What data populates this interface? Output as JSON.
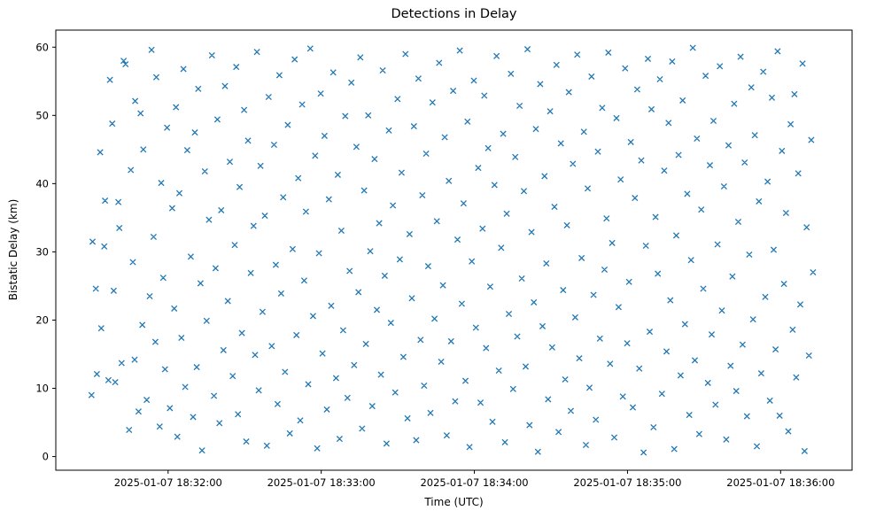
{
  "title": "Detections in Delay",
  "chart_data": {
    "type": "scatter",
    "title": "Detections in Delay",
    "xlabel": "Time (UTC)",
    "ylabel": "Bistatic Delay (km)",
    "marker": "x",
    "marker_color": "#1f77b4",
    "x_unit": "seconds after 2025-01-07 18:32:00",
    "xlim_seconds": [
      -44,
      268
    ],
    "ylim": [
      -2.0,
      62.5
    ],
    "x_tick_seconds": [
      0,
      60,
      120,
      180,
      240
    ],
    "x_tick_labels": [
      "2025-01-07 18:32:00",
      "2025-01-07 18:33:00",
      "2025-01-07 18:34:00",
      "2025-01-07 18:35:00",
      "2025-01-07 18:36:00"
    ],
    "y_ticks": [
      0,
      10,
      20,
      30,
      40,
      50,
      60
    ],
    "grid": false,
    "legend": "none",
    "points_t_y": [
      -30.0,
      9.0,
      -29.6,
      31.5,
      -28.3,
      24.6,
      -27.9,
      12.1,
      -26.6,
      44.6,
      -26.2,
      18.8,
      -25.0,
      30.8,
      -24.7,
      37.5,
      -23.4,
      11.2,
      -22.8,
      55.2,
      -21.9,
      48.8,
      -21.3,
      24.3,
      -20.7,
      10.9,
      -19.5,
      37.3,
      -19.1,
      33.5,
      -18.2,
      13.7,
      -17.4,
      58.0,
      -16.7,
      57.5,
      -15.3,
      3.9,
      -14.6,
      42.0,
      -13.8,
      28.5,
      -13.1,
      14.2,
      -12.9,
      52.1,
      -11.6,
      6.6,
      -10.8,
      50.3,
      -10.1,
      19.3,
      -9.7,
      45.0,
      -8.4,
      8.3,
      -7.2,
      23.5,
      -6.5,
      59.6,
      -5.7,
      32.2,
      -5.0,
      16.8,
      -4.6,
      55.6,
      -3.3,
      4.4,
      -2.7,
      40.1,
      -1.9,
      26.2,
      -1.2,
      12.8,
      -0.4,
      48.2,
      0.7,
      7.1,
      1.6,
      36.4,
      2.4,
      21.7,
      3.1,
      51.2,
      3.6,
      2.9,
      4.4,
      38.6,
      5.2,
      17.4,
      6.0,
      56.8,
      6.7,
      10.2,
      7.5,
      44.9,
      8.9,
      29.3,
      9.8,
      5.8,
      10.5,
      47.5,
      11.2,
      13.1,
      11.8,
      53.9,
      12.7,
      25.4,
      13.3,
      0.9,
      14.4,
      41.8,
      15.1,
      19.9,
      16.0,
      34.7,
      17.2,
      58.8,
      18.0,
      8.9,
      18.6,
      27.6,
      19.3,
      49.4,
      20.1,
      4.9,
      20.8,
      36.1,
      21.7,
      15.6,
      22.3,
      54.3,
      23.4,
      22.8,
      24.2,
      43.2,
      25.3,
      11.8,
      26.1,
      31.0,
      26.7,
      57.1,
      27.4,
      6.2,
      28.0,
      39.5,
      28.9,
      18.1,
      29.8,
      50.8,
      30.6,
      2.2,
      31.3,
      46.3,
      32.4,
      26.9,
      33.5,
      33.8,
      34.1,
      14.9,
      34.8,
      59.3,
      35.5,
      9.7,
      36.2,
      42.6,
      37.0,
      21.2,
      37.9,
      35.3,
      38.7,
      1.6,
      39.4,
      52.7,
      40.6,
      16.2,
      41.5,
      45.7,
      42.2,
      28.1,
      42.9,
      7.7,
      43.6,
      55.9,
      44.3,
      23.9,
      45.1,
      38.0,
      45.8,
      12.4,
      46.9,
      48.6,
      47.7,
      3.4,
      48.8,
      30.4,
      49.6,
      58.2,
      50.3,
      17.8,
      51.0,
      40.8,
      51.8,
      5.3,
      52.5,
      51.6,
      53.3,
      25.8,
      54.0,
      35.9,
      54.9,
      10.6,
      55.7,
      59.8,
      56.8,
      20.6,
      57.6,
      44.1,
      58.4,
      1.2,
      59.1,
      29.8,
      59.8,
      53.2,
      60.5,
      15.1,
      61.3,
      47.0,
      62.2,
      6.9,
      63.0,
      37.7,
      63.9,
      22.1,
      64.7,
      56.3,
      65.8,
      11.5,
      66.5,
      41.3,
      67.2,
      2.6,
      67.9,
      33.1,
      68.6,
      18.5,
      69.4,
      49.9,
      70.3,
      8.6,
      71.1,
      27.2,
      71.8,
      54.8,
      72.9,
      13.4,
      73.8,
      45.4,
      74.6,
      24.1,
      75.3,
      58.5,
      76.0,
      4.1,
      76.8,
      39.0,
      77.5,
      16.5,
      78.4,
      50.0,
      79.2,
      30.1,
      80.0,
      7.4,
      80.9,
      43.6,
      81.8,
      21.5,
      82.7,
      34.2,
      83.4,
      12.0,
      84.1,
      56.6,
      84.9,
      26.5,
      85.6,
      1.9,
      86.5,
      47.8,
      87.3,
      19.6,
      88.1,
      36.8,
      89.0,
      9.4,
      89.9,
      52.4,
      90.8,
      28.9,
      91.5,
      41.6,
      92.2,
      14.6,
      93.0,
      59.0,
      93.8,
      5.6,
      94.6,
      32.6,
      95.5,
      23.2,
      96.3,
      48.4,
      97.2,
      2.4,
      98.1,
      55.4,
      98.9,
      17.1,
      99.6,
      38.3,
      100.3,
      10.4,
      101.1,
      44.4,
      101.9,
      27.9,
      102.8,
      6.4,
      103.6,
      51.9,
      104.4,
      20.2,
      105.3,
      34.5,
      106.2,
      57.7,
      107.0,
      13.9,
      107.7,
      25.1,
      108.4,
      46.8,
      109.2,
      3.1,
      110.0,
      40.4,
      110.9,
      16.9,
      111.7,
      53.6,
      112.5,
      8.1,
      113.4,
      31.8,
      114.3,
      59.5,
      115.1,
      22.4,
      115.8,
      37.1,
      116.5,
      11.1,
      117.3,
      49.1,
      118.1,
      1.4,
      119.0,
      28.6,
      119.8,
      55.1,
      120.6,
      18.9,
      121.5,
      42.3,
      122.4,
      7.9,
      123.2,
      33.4,
      123.9,
      52.9,
      124.6,
      15.9,
      125.4,
      45.2,
      126.2,
      24.9,
      127.1,
      5.1,
      127.9,
      39.8,
      128.7,
      58.7,
      129.6,
      12.6,
      130.5,
      30.6,
      131.3,
      47.3,
      132.0,
      2.1,
      132.7,
      35.6,
      133.5,
      20.9,
      134.3,
      56.1,
      135.2,
      9.9,
      136.0,
      43.9,
      136.8,
      17.6,
      137.7,
      51.4,
      138.6,
      26.1,
      139.4,
      38.9,
      140.1,
      13.2,
      140.8,
      59.7,
      141.6,
      4.6,
      142.4,
      32.9,
      143.3,
      22.6,
      144.1,
      48.0,
      144.9,
      0.7,
      145.8,
      54.6,
      146.7,
      19.1,
      147.5,
      41.1,
      148.2,
      28.3,
      148.9,
      8.4,
      149.7,
      50.6,
      150.5,
      16.0,
      151.4,
      36.6,
      152.2,
      57.4,
      153.0,
      3.6,
      153.9,
      45.9,
      154.8,
      24.4,
      155.6,
      11.3,
      156.3,
      33.9,
      157.0,
      53.4,
      157.8,
      6.7,
      158.6,
      42.9,
      159.5,
      20.4,
      160.3,
      58.9,
      161.1,
      14.4,
      162.0,
      29.1,
      162.9,
      47.6,
      163.7,
      1.7,
      164.4,
      39.3,
      165.1,
      10.1,
      165.9,
      55.7,
      166.7,
      23.7,
      167.6,
      5.4,
      168.4,
      44.7,
      169.2,
      17.3,
      170.1,
      51.1,
      171.0,
      27.4,
      171.8,
      34.9,
      172.5,
      59.2,
      173.2,
      13.6,
      174.0,
      31.3,
      174.8,
      2.8,
      175.7,
      49.6,
      176.5,
      21.9,
      177.3,
      40.6,
      178.2,
      8.8,
      179.1,
      56.9,
      179.9,
      16.6,
      180.6,
      25.6,
      181.3,
      46.1,
      182.1,
      7.2,
      182.9,
      37.9,
      183.8,
      53.8,
      184.6,
      12.9,
      185.4,
      43.4,
      186.3,
      0.6,
      187.2,
      30.9,
      188.0,
      58.3,
      188.7,
      18.3,
      189.4,
      50.9,
      190.2,
      4.3,
      191.0,
      35.1,
      191.9,
      26.8,
      192.7,
      55.3,
      193.5,
      9.2,
      194.4,
      41.9,
      195.3,
      15.4,
      196.1,
      48.9,
      196.8,
      22.9,
      197.5,
      57.9,
      198.3,
      1.1,
      199.1,
      32.4,
      200.0,
      44.2,
      200.8,
      11.9,
      201.6,
      52.2,
      202.5,
      19.4,
      203.4,
      38.5,
      204.2,
      6.1,
      204.9,
      28.8,
      205.6,
      59.9,
      206.4,
      14.1,
      207.2,
      46.6,
      208.1,
      3.3,
      208.9,
      36.2,
      209.7,
      24.6,
      210.6,
      55.8,
      211.5,
      10.8,
      212.3,
      42.7,
      213.0,
      17.9,
      213.7,
      49.2,
      214.5,
      7.6,
      215.3,
      31.1,
      216.2,
      57.2,
      217.0,
      21.4,
      217.8,
      39.6,
      218.7,
      2.5,
      219.6,
      45.6,
      220.4,
      13.3,
      221.1,
      26.4,
      221.8,
      51.7,
      222.6,
      9.6,
      223.4,
      34.4,
      224.3,
      58.6,
      225.1,
      16.4,
      225.9,
      43.1,
      226.8,
      5.9,
      227.7,
      29.6,
      228.5,
      54.1,
      229.2,
      20.1,
      229.9,
      47.1,
      230.7,
      1.5,
      231.5,
      37.4,
      232.4,
      12.2,
      233.2,
      56.4,
      234.0,
      23.4,
      234.9,
      40.3,
      235.8,
      8.2,
      236.6,
      52.6,
      237.3,
      30.3,
      238.0,
      15.7,
      238.8,
      59.4,
      239.6,
      6.0,
      240.5,
      44.8,
      241.3,
      25.3,
      242.1,
      35.7,
      243.0,
      3.7,
      243.9,
      48.7,
      244.7,
      18.6,
      245.4,
      53.1,
      246.1,
      11.6,
      246.9,
      41.5,
      247.7,
      22.3,
      248.6,
      57.6,
      249.4,
      0.8,
      250.2,
      33.6,
      251.1,
      14.8,
      252.0,
      46.4,
      252.7,
      27.0
    ]
  }
}
